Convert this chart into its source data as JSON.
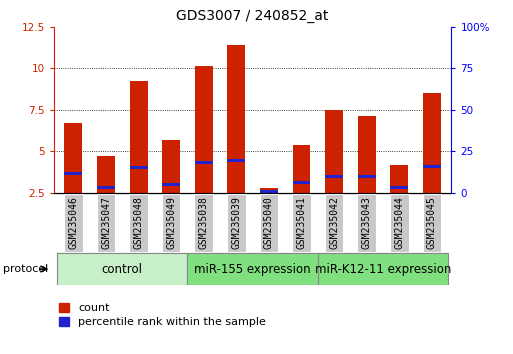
{
  "title": "GDS3007 / 240852_at",
  "samples": [
    "GSM235046",
    "GSM235047",
    "GSM235048",
    "GSM235049",
    "GSM235038",
    "GSM235039",
    "GSM235040",
    "GSM235041",
    "GSM235042",
    "GSM235043",
    "GSM235044",
    "GSM235045"
  ],
  "count_values": [
    6.7,
    4.7,
    9.2,
    5.7,
    10.1,
    11.4,
    2.8,
    5.4,
    7.5,
    7.1,
    4.2,
    8.5
  ],
  "percentile_values": [
    3.65,
    2.82,
    4.05,
    3.0,
    4.35,
    4.45,
    2.58,
    3.1,
    3.5,
    3.5,
    2.82,
    4.1
  ],
  "ylim_left": [
    2.5,
    12.5
  ],
  "ylim_right": [
    0,
    100
  ],
  "yticks_left": [
    2.5,
    5.0,
    7.5,
    10.0,
    12.5
  ],
  "yticks_right": [
    0,
    25,
    50,
    75,
    100
  ],
  "ytick_labels_left": [
    "2.5",
    "5",
    "7.5",
    "10",
    "12.5"
  ],
  "ytick_labels_right": [
    "0",
    "25",
    "50",
    "75",
    "100%"
  ],
  "groups": [
    {
      "label": "control",
      "start": 0,
      "end": 4,
      "color": "#c8f0c8"
    },
    {
      "label": "miR-155 expression",
      "start": 4,
      "end": 8,
      "color": "#80e080"
    },
    {
      "label": "miR-K12-11 expression",
      "start": 8,
      "end": 12,
      "color": "#80e080"
    }
  ],
  "bar_color_red": "#cc2200",
  "bar_color_blue": "#2222cc",
  "bar_width": 0.55,
  "background_color": "#ffffff",
  "plot_bg_color": "#ffffff",
  "title_fontsize": 10,
  "tick_fontsize": 7.5,
  "label_fontsize": 7,
  "legend_fontsize": 8,
  "group_fontsize": 8.5,
  "protocol_label": "protocol"
}
